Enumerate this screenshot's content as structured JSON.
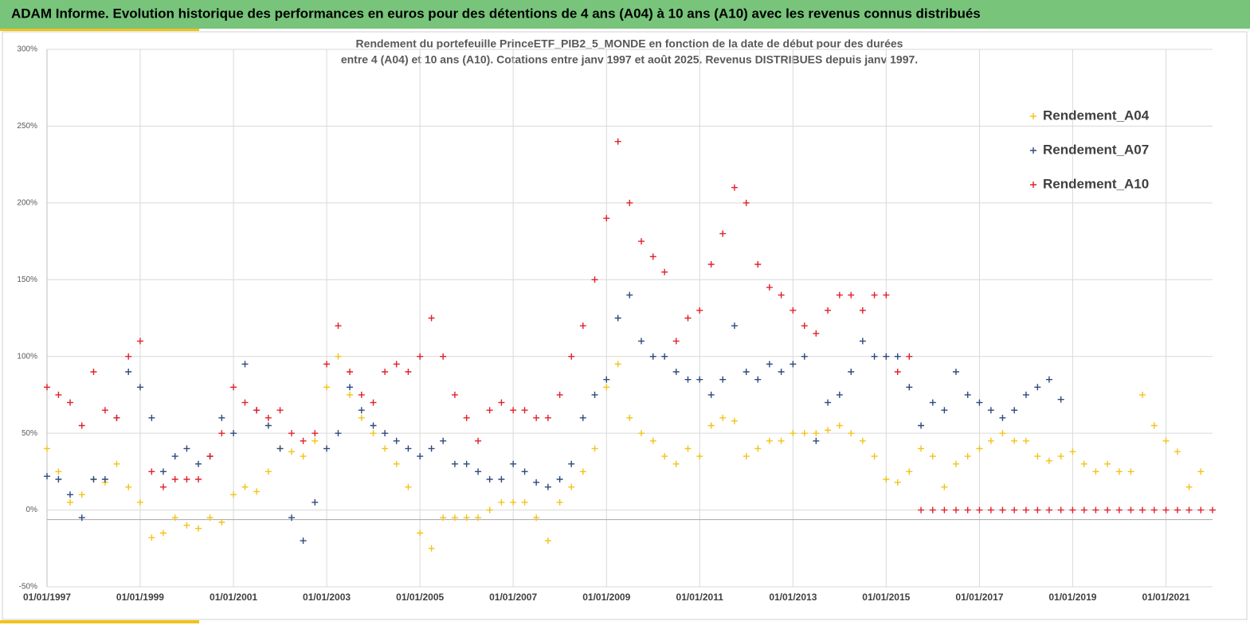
{
  "header": {
    "title": "ADAM Informe. Evolution historique des performances en euros pour des détentions de 4 ans (A04) à 10 ans (A10) avec les revenus connus distribués"
  },
  "chart_data": {
    "type": "scatter",
    "title": "Rendement du portefeuille PrinceETF_PIB2_5_MONDE  en fonction de la date de début pour des durées",
    "subtitle": "entre 4 (A04) et 10 ans (A10). Cotations  entre janv 1997 et août 2025. Revenus DISTRIBUES depuis janv 1997.",
    "x": [
      "1997-01-01",
      "1997-04-01",
      "1997-07-01",
      "1997-10-01",
      "1998-01-01",
      "1998-04-01",
      "1998-07-01",
      "1998-10-01",
      "1999-01-01",
      "1999-04-01",
      "1999-07-01",
      "1999-10-01",
      "2000-01-01",
      "2000-04-01",
      "2000-07-01",
      "2000-10-01",
      "2001-01-01",
      "2001-04-01",
      "2001-07-01",
      "2001-10-01",
      "2002-01-01",
      "2002-04-01",
      "2002-07-01",
      "2002-10-01",
      "2003-01-01",
      "2003-04-01",
      "2003-07-01",
      "2003-10-01",
      "2004-01-01",
      "2004-04-01",
      "2004-07-01",
      "2004-10-01",
      "2005-01-01",
      "2005-04-01",
      "2005-07-01",
      "2005-10-01",
      "2006-01-01",
      "2006-04-01",
      "2006-07-01",
      "2006-10-01",
      "2007-01-01",
      "2007-04-01",
      "2007-07-01",
      "2007-10-01",
      "2008-01-01",
      "2008-04-01",
      "2008-07-01",
      "2008-10-01",
      "2009-01-01",
      "2009-04-01",
      "2009-07-01",
      "2009-10-01",
      "2010-01-01",
      "2010-04-01",
      "2010-07-01",
      "2010-10-01",
      "2011-01-01",
      "2011-04-01",
      "2011-07-01",
      "2011-10-01",
      "2012-01-01",
      "2012-04-01",
      "2012-07-01",
      "2012-10-01",
      "2013-01-01",
      "2013-04-01",
      "2013-07-01",
      "2013-10-01",
      "2014-01-01",
      "2014-04-01",
      "2014-07-01",
      "2014-10-01",
      "2015-01-01",
      "2015-04-01",
      "2015-07-01",
      "2015-10-01",
      "2016-01-01",
      "2016-04-01",
      "2016-07-01",
      "2016-10-01",
      "2017-01-01",
      "2017-04-01",
      "2017-07-01",
      "2017-10-01",
      "2018-01-01",
      "2018-04-01",
      "2018-07-01",
      "2018-10-01",
      "2019-01-01",
      "2019-04-01",
      "2019-07-01",
      "2019-10-01",
      "2020-01-01",
      "2020-04-01",
      "2020-07-01",
      "2020-10-01",
      "2021-01-01",
      "2021-04-01",
      "2021-07-01",
      "2021-10-01",
      "2022-01-01"
    ],
    "series": [
      {
        "name": "Rendement_A04",
        "color": "#f2c319",
        "values": [
          40,
          25,
          5,
          10,
          20,
          18,
          30,
          15,
          5,
          -18,
          -15,
          -5,
          -10,
          -12,
          -5,
          -8,
          10,
          15,
          12,
          25,
          40,
          38,
          35,
          45,
          80,
          100,
          75,
          60,
          50,
          40,
          30,
          15,
          -15,
          -25,
          -5,
          -5,
          -5,
          -5,
          0,
          5,
          5,
          5,
          -5,
          -20,
          5,
          15,
          25,
          40,
          80,
          95,
          60,
          50,
          45,
          35,
          30,
          40,
          35,
          55,
          60,
          58,
          35,
          40,
          45,
          45,
          50,
          50,
          50,
          52,
          55,
          50,
          45,
          35,
          20,
          18,
          25,
          40,
          35,
          15,
          30,
          35,
          40,
          45,
          50,
          45,
          45,
          35,
          32,
          35,
          38,
          30,
          25,
          30,
          25,
          25,
          75,
          55,
          45,
          38,
          15,
          25,
          null
        ]
      },
      {
        "name": "Rendement_A07",
        "color": "#2e4a7d",
        "values": [
          22,
          20,
          10,
          -5,
          20,
          20,
          60,
          90,
          80,
          60,
          25,
          35,
          40,
          30,
          35,
          60,
          50,
          95,
          65,
          55,
          40,
          -5,
          -20,
          5,
          40,
          50,
          80,
          65,
          55,
          50,
          45,
          40,
          35,
          40,
          45,
          30,
          30,
          25,
          20,
          20,
          30,
          25,
          18,
          15,
          20,
          30,
          60,
          75,
          85,
          125,
          140,
          110,
          100,
          100,
          90,
          85,
          85,
          75,
          85,
          120,
          90,
          85,
          95,
          90,
          95,
          100,
          45,
          70,
          75,
          90,
          110,
          100,
          100,
          100,
          80,
          55,
          70,
          65,
          90,
          75,
          70,
          65,
          60,
          65,
          75,
          80,
          85,
          72,
          null,
          null,
          null,
          null,
          null,
          null,
          null,
          null,
          null,
          null,
          null,
          null,
          null
        ]
      },
      {
        "name": "Rendement_A10",
        "color": "#e2202b",
        "values": [
          80,
          75,
          70,
          55,
          90,
          65,
          60,
          100,
          110,
          25,
          15,
          20,
          20,
          20,
          35,
          50,
          80,
          70,
          65,
          60,
          65,
          50,
          45,
          50,
          95,
          120,
          90,
          75,
          70,
          90,
          95,
          90,
          100,
          125,
          100,
          75,
          60,
          45,
          65,
          70,
          65,
          65,
          60,
          60,
          75,
          100,
          120,
          150,
          190,
          240,
          200,
          175,
          165,
          155,
          110,
          125,
          130,
          160,
          180,
          210,
          200,
          160,
          145,
          140,
          130,
          120,
          115,
          130,
          140,
          140,
          130,
          140,
          140,
          90,
          100,
          0,
          0,
          0,
          0,
          0,
          0,
          0,
          0,
          0,
          0,
          0,
          0,
          0,
          0,
          0,
          0,
          0,
          0,
          0,
          0,
          0,
          0,
          0,
          0,
          0,
          0
        ]
      }
    ],
    "xlim": [
      "1997-01-01",
      "2022-01-01"
    ],
    "xticks": [
      {
        "value": "1997-01-01",
        "label": "01/01/1997"
      },
      {
        "value": "1999-01-01",
        "label": "01/01/1999"
      },
      {
        "value": "2001-01-01",
        "label": "01/01/2001"
      },
      {
        "value": "2003-01-01",
        "label": "01/01/2003"
      },
      {
        "value": "2005-01-01",
        "label": "01/01/2005"
      },
      {
        "value": "2007-01-01",
        "label": "01/01/2007"
      },
      {
        "value": "2009-01-01",
        "label": "01/01/2009"
      },
      {
        "value": "2011-01-01",
        "label": "01/01/2011"
      },
      {
        "value": "2013-01-01",
        "label": "01/01/2013"
      },
      {
        "value": "2015-01-01",
        "label": "01/01/2015"
      },
      {
        "value": "2017-01-01",
        "label": "01/01/2017"
      },
      {
        "value": "2019-01-01",
        "label": "01/01/2019"
      },
      {
        "value": "2021-01-01",
        "label": "01/01/2021"
      }
    ],
    "ylim": [
      -50,
      300
    ],
    "yticks": [
      {
        "value": -50,
        "label": "-50%"
      },
      {
        "value": 0,
        "label": "0%"
      },
      {
        "value": 50,
        "label": "50%"
      },
      {
        "value": 100,
        "label": "100%"
      },
      {
        "value": 150,
        "label": "150%"
      },
      {
        "value": 200,
        "label": "200%"
      },
      {
        "value": 250,
        "label": "250%"
      },
      {
        "value": 300,
        "label": "300%"
      }
    ],
    "grid": true,
    "legend": "top-right"
  }
}
